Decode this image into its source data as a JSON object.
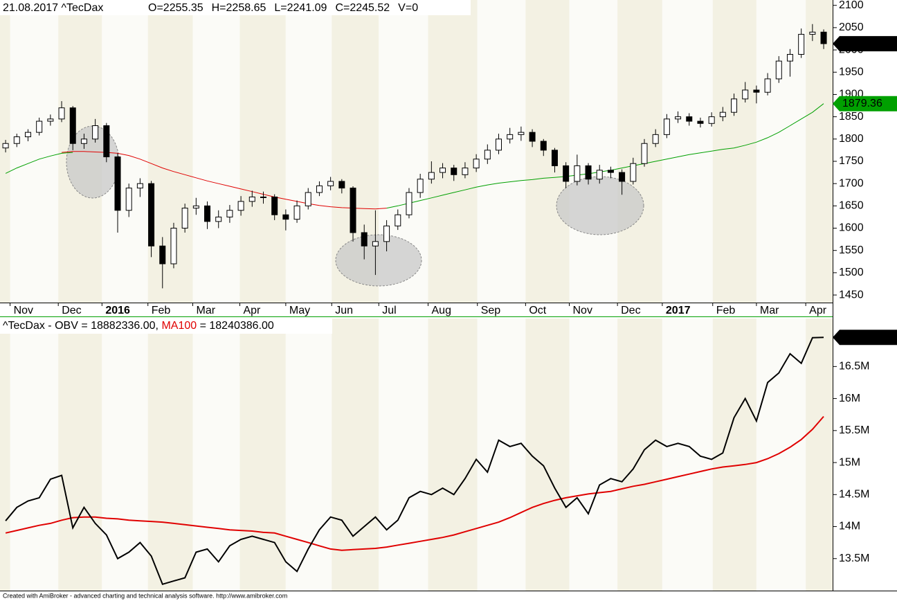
{
  "chart_data": [
    {
      "type": "candlestick",
      "title": "21.08.2017 ^TecDax",
      "readout": [
        "O=2255.35",
        "H=2258.65",
        "L=2241.09",
        "C=2245.52",
        "V=0"
      ],
      "xlim": [
        -0.5,
        73.8
      ],
      "xticks": [
        {
          "value": 0.4,
          "label": "Nov"
        },
        {
          "value": 4.7,
          "label": "Dec"
        },
        {
          "value": 8.6,
          "label": "2016"
        },
        {
          "value": 12.7,
          "label": "Feb"
        },
        {
          "value": 16.7,
          "label": "Mar"
        },
        {
          "value": 20.9,
          "label": "Apr"
        },
        {
          "value": 25,
          "label": "May"
        },
        {
          "value": 29.1,
          "label": "Jun"
        },
        {
          "value": 33.3,
          "label": "Jul"
        },
        {
          "value": 37.7,
          "label": "Aug"
        },
        {
          "value": 42.1,
          "label": "Sep"
        },
        {
          "value": 46.4,
          "label": "Oct"
        },
        {
          "value": 50.3,
          "label": "Nov"
        },
        {
          "value": 54.6,
          "label": "Dec"
        },
        {
          "value": 58.6,
          "label": "2017"
        },
        {
          "value": 63.1,
          "label": "Feb"
        },
        {
          "value": 67,
          "label": "Mar"
        },
        {
          "value": 71.4,
          "label": "Apr"
        }
      ],
      "ylim": [
        1433,
        2112
      ],
      "yticks": [
        1450,
        1500,
        1550,
        1600,
        1650,
        1700,
        1750,
        1800,
        1850,
        1900,
        1950,
        2000,
        2050,
        2100
      ],
      "up_color": "#ffffff",
      "down_color": "#000000",
      "candles": {
        "open": [
          1780,
          1790,
          1805,
          1815,
          1840,
          1845,
          1870,
          1790,
          1800,
          1830,
          1760,
          1640,
          1690,
          1700,
          1560,
          1520,
          1600,
          1645,
          1650,
          1615,
          1625,
          1640,
          1660,
          1670,
          1670,
          1630,
          1620,
          1650,
          1680,
          1695,
          1705,
          1690,
          1590,
          1560,
          1570,
          1605,
          1630,
          1680,
          1710,
          1725,
          1735,
          1720,
          1735,
          1755,
          1775,
          1800,
          1810,
          1815,
          1795,
          1775,
          1740,
          1705,
          1740,
          1710,
          1730,
          1725,
          1705,
          1745,
          1790,
          1810,
          1845,
          1850,
          1840,
          1835,
          1850,
          1860,
          1890,
          1910,
          1905,
          1935,
          1975,
          1990,
          2035,
          2040
        ],
        "high": [
          1798,
          1812,
          1822,
          1848,
          1855,
          1885,
          1874,
          1812,
          1845,
          1836,
          1768,
          1700,
          1712,
          1706,
          1580,
          1612,
          1655,
          1668,
          1660,
          1640,
          1652,
          1672,
          1684,
          1682,
          1676,
          1642,
          1662,
          1690,
          1705,
          1715,
          1710,
          1694,
          1608,
          1640,
          1618,
          1642,
          1690,
          1722,
          1750,
          1746,
          1742,
          1748,
          1766,
          1788,
          1812,
          1825,
          1828,
          1822,
          1800,
          1780,
          1748,
          1765,
          1746,
          1742,
          1738,
          1732,
          1758,
          1800,
          1822,
          1856,
          1862,
          1858,
          1848,
          1860,
          1872,
          1902,
          1928,
          1920,
          1948,
          1986,
          2002,
          2048,
          2058,
          2046
        ],
        "low": [
          1770,
          1782,
          1795,
          1808,
          1830,
          1838,
          1775,
          1778,
          1792,
          1748,
          1590,
          1625,
          1670,
          1535,
          1465,
          1510,
          1590,
          1630,
          1598,
          1600,
          1612,
          1628,
          1648,
          1655,
          1618,
          1595,
          1612,
          1642,
          1672,
          1685,
          1678,
          1570,
          1530,
          1495,
          1548,
          1596,
          1622,
          1668,
          1700,
          1712,
          1706,
          1712,
          1726,
          1744,
          1766,
          1790,
          1796,
          1782,
          1762,
          1725,
          1690,
          1696,
          1698,
          1700,
          1712,
          1675,
          1698,
          1738,
          1782,
          1802,
          1836,
          1830,
          1826,
          1828,
          1840,
          1852,
          1882,
          1880,
          1898,
          1926,
          1940,
          1982,
          2020,
          2002
        ],
        "close": [
          1790,
          1805,
          1815,
          1840,
          1845,
          1870,
          1790,
          1800,
          1830,
          1760,
          1640,
          1690,
          1700,
          1560,
          1520,
          1600,
          1645,
          1650,
          1615,
          1625,
          1640,
          1660,
          1670,
          1670,
          1630,
          1620,
          1650,
          1680,
          1695,
          1705,
          1690,
          1590,
          1560,
          1570,
          1605,
          1630,
          1680,
          1710,
          1725,
          1735,
          1720,
          1735,
          1755,
          1775,
          1800,
          1810,
          1815,
          1795,
          1775,
          1740,
          1705,
          1740,
          1710,
          1730,
          1725,
          1705,
          1745,
          1790,
          1810,
          1845,
          1850,
          1840,
          1835,
          1850,
          1860,
          1890,
          1910,
          1905,
          1935,
          1975,
          1990,
          2035,
          2040,
          2014.01
        ]
      },
      "series": [
        {
          "color": "#00a000",
          "values": [
            1723,
            1735,
            1745,
            1755,
            1762,
            1768,
            1770,
            null,
            null,
            null,
            null,
            null,
            null,
            null,
            null,
            null,
            null,
            null,
            null,
            null,
            null,
            null,
            null,
            null,
            null,
            null,
            null,
            null,
            null,
            null,
            null,
            null,
            null,
            null,
            1645,
            1650,
            1656,
            1662,
            1668,
            1674,
            1680,
            1686,
            1692,
            1697,
            1701,
            1704,
            1707,
            1709,
            1712,
            1714,
            1716,
            1719,
            1722,
            1726,
            1730,
            1735,
            1740,
            1745,
            1750,
            1755,
            1760,
            1765,
            1769,
            1773,
            1777,
            1780,
            1786,
            1793,
            1803,
            1815,
            1830,
            1845,
            1860,
            1879.36
          ]
        },
        {
          "color": "#e00000",
          "values": [
            null,
            null,
            null,
            null,
            null,
            1770,
            1772,
            1772,
            1771,
            1770,
            1768,
            1763,
            1755,
            1745,
            1735,
            1727,
            1720,
            1713,
            1706,
            1700,
            1694,
            1688,
            1682,
            1676,
            1670,
            1665,
            1660,
            1655,
            1651,
            1648,
            1646,
            1645,
            1644,
            1643,
            1645,
            null,
            null,
            null,
            null,
            null,
            null,
            null,
            null,
            null,
            null,
            null,
            null,
            null,
            null,
            null,
            null,
            null,
            null,
            null,
            null,
            null,
            null,
            null,
            null,
            null,
            null,
            null,
            null,
            null,
            null,
            null,
            null,
            null,
            null,
            null,
            null,
            null,
            null,
            null
          ]
        }
      ]
    },
    {
      "type": "line",
      "title": "^TecDax - OBV = 18882336.00,",
      "ma_readout": "= 18240386.00",
      "ylim": [
        13000000,
        17250000
      ],
      "yticks": [
        {
          "value": 13500000,
          "label": "13.5M"
        },
        {
          "value": 14000000,
          "label": "14M"
        },
        {
          "value": 14500000,
          "label": "14.5M"
        },
        {
          "value": 15000000,
          "label": "15M"
        },
        {
          "value": 15500000,
          "label": "15.5M"
        },
        {
          "value": 16000000,
          "label": "16M"
        },
        {
          "value": 16500000,
          "label": "16.5M"
        }
      ],
      "series": [
        {
          "color": "#000000",
          "values": [
            14090000,
            14300000,
            14400000,
            14450000,
            14740000,
            14800000,
            13980000,
            14300000,
            14050000,
            13870000,
            13500000,
            13600000,
            13750000,
            13540000,
            13100000,
            13150000,
            13200000,
            13600000,
            13650000,
            13450000,
            13700000,
            13800000,
            13850000,
            13800000,
            13750000,
            13450000,
            13300000,
            13650000,
            13950000,
            14150000,
            14100000,
            13850000,
            14000000,
            14150000,
            13950000,
            14100000,
            14450000,
            14550000,
            14500000,
            14600000,
            14500000,
            14750000,
            15050000,
            14850000,
            15350000,
            15250000,
            15300000,
            15100000,
            14950000,
            14600000,
            14300000,
            14450000,
            14200000,
            14650000,
            14750000,
            14700000,
            14900000,
            15200000,
            15350000,
            15250000,
            15300000,
            15250000,
            15100000,
            15050000,
            15150000,
            15700000,
            16000000,
            15650000,
            16250000,
            16400000,
            16700000,
            16550000,
            16950000,
            16955406
          ]
        },
        {
          "name": "MA100",
          "color": "#e00000",
          "values": [
            13900000,
            13940000,
            13980000,
            14020000,
            14050000,
            14100000,
            14140000,
            14150000,
            14150000,
            14130000,
            14120000,
            14100000,
            14090000,
            14080000,
            14070000,
            14050000,
            14030000,
            14010000,
            13990000,
            13970000,
            13950000,
            13940000,
            13930000,
            13910000,
            13900000,
            13850000,
            13800000,
            13750000,
            13700000,
            13650000,
            13630000,
            13640000,
            13650000,
            13660000,
            13680000,
            13710000,
            13740000,
            13770000,
            13800000,
            13830000,
            13870000,
            13920000,
            13970000,
            14020000,
            14070000,
            14140000,
            14220000,
            14300000,
            14360000,
            14410000,
            14450000,
            14480000,
            14510000,
            14530000,
            14550000,
            14590000,
            14630000,
            14660000,
            14700000,
            14740000,
            14780000,
            14820000,
            14860000,
            14900000,
            14930000,
            14950000,
            14970000,
            15000000,
            15060000,
            15140000,
            15240000,
            15360000,
            15520000,
            15720000
          ]
        }
      ]
    }
  ],
  "footer": "Created with AmiBroker - advanced charting and technical analysis software. http://www.amibroker.com"
}
